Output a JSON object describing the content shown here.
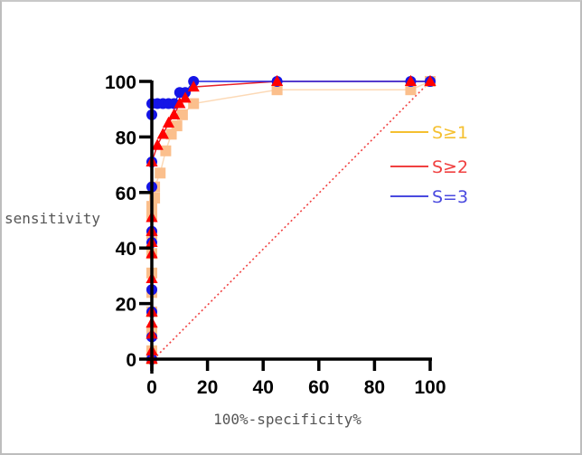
{
  "chart_data": {
    "type": "line",
    "title": "",
    "xlabel": "100%-specificity%",
    "ylabel": "sensitivity",
    "xlim": [
      0,
      100
    ],
    "ylim": [
      0,
      100
    ],
    "xticks": [
      0,
      20,
      40,
      60,
      80,
      100
    ],
    "yticks": [
      0,
      20,
      40,
      60,
      80,
      100
    ],
    "grid": false,
    "legend_position": "right",
    "reference_line": {
      "name": "chance",
      "x": [
        0,
        100
      ],
      "y": [
        0,
        100
      ],
      "style": "dotted",
      "color": "#f04040"
    },
    "series": [
      {
        "name": "S≥1",
        "color": "#f5c030",
        "line_color": "#fcd9b6",
        "marker": "square",
        "marker_color": "#fbbf8c",
        "x": [
          0,
          0,
          0,
          0,
          0,
          0,
          0,
          0,
          0,
          0,
          1,
          1,
          3,
          5,
          7,
          9,
          11,
          15,
          45,
          93,
          100
        ],
        "y": [
          0,
          3,
          10,
          17,
          24,
          31,
          38,
          45,
          52,
          55,
          58,
          62,
          67,
          75,
          81,
          84,
          88,
          92,
          97,
          97,
          100
        ]
      },
      {
        "name": "S≥2",
        "color": "#f04040",
        "line_color": "#e8222a",
        "marker": "triangle",
        "marker_color": "#ff0000",
        "x": [
          0,
          0,
          0,
          0,
          0,
          0,
          0,
          0,
          0,
          0,
          0,
          2,
          4,
          6,
          8,
          10,
          12,
          15,
          45,
          93,
          100
        ],
        "y": [
          0,
          3,
          9,
          13,
          17,
          29,
          38,
          42,
          46,
          51,
          71,
          77,
          81,
          85,
          88,
          92,
          94,
          98,
          100,
          100,
          100
        ]
      },
      {
        "name": "S=3",
        "color": "#4a4adf",
        "line_color": "#1f1fe0",
        "marker": "circle",
        "marker_color": "#1515e6",
        "x": [
          0,
          0,
          0,
          0,
          0,
          0,
          0,
          0,
          0,
          0,
          2,
          4,
          6,
          8,
          10,
          12,
          15,
          45,
          93,
          100
        ],
        "y": [
          0,
          8,
          17,
          25,
          42,
          46,
          62,
          71,
          88,
          92,
          92,
          92,
          92,
          92,
          96,
          96,
          100,
          100,
          100,
          100
        ]
      }
    ]
  },
  "legend": {
    "items": [
      {
        "label": "S≥1",
        "color": "#f5c030"
      },
      {
        "label": "S≥2",
        "color": "#f04040"
      },
      {
        "label": "S=3",
        "color": "#4a4adf"
      }
    ]
  },
  "axes": {
    "x_label": "100%-specificity%",
    "y_label": "sensitivity",
    "x_ticks": [
      "0",
      "20",
      "40",
      "60",
      "80",
      "100"
    ],
    "y_ticks": [
      "0",
      "20",
      "40",
      "60",
      "80",
      "100"
    ]
  }
}
